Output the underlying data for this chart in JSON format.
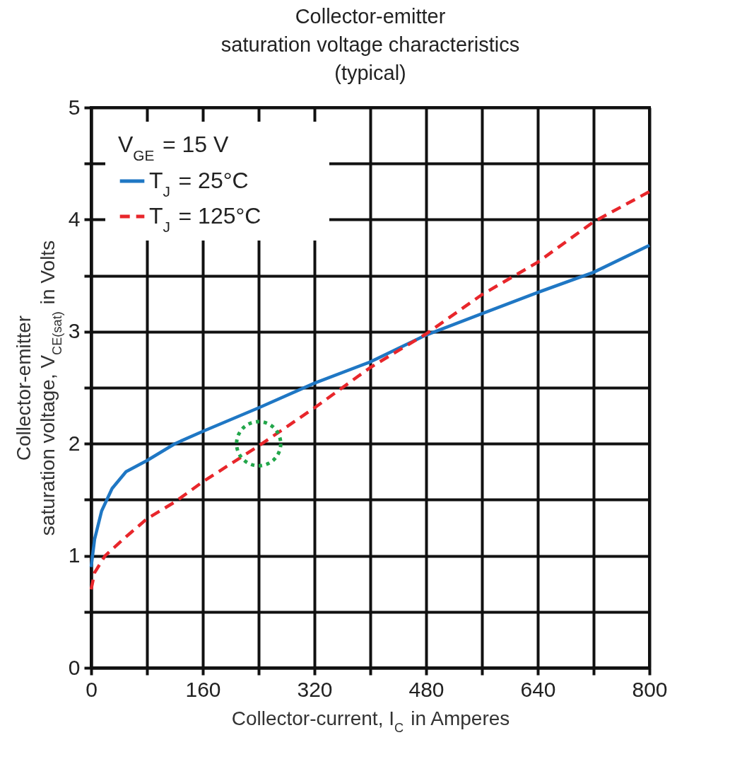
{
  "chart_data": {
    "type": "line",
    "title": "Collector-emitter\nsaturation voltage characteristics\n(typical)",
    "xlabel": "Collector-current, I$_{C}$ in Amperes",
    "ylabel": "Collector-emitter\nsaturation voltage, V$_{CE(sat)}$ in Volts",
    "legend_title": "V$_{GE}$ = 15 V",
    "legend": "top left",
    "grid": true,
    "xlim": [
      0,
      800
    ],
    "xticks": [
      0,
      {
        "value": 80,
        "label": null
      },
      160,
      {
        "value": 240,
        "label": null
      },
      320,
      {
        "value": 400,
        "label": null
      },
      480,
      {
        "value": 560,
        "label": null
      },
      640,
      {
        "value": 720,
        "label": null
      },
      800
    ],
    "ylim": [
      0,
      5
    ],
    "yticks": [
      0,
      {
        "value": 0.5,
        "label": null
      },
      1,
      {
        "value": 1.5,
        "label": null
      },
      2,
      {
        "value": 2.5,
        "label": null
      },
      3,
      {
        "value": 3.5,
        "label": null
      },
      4,
      {
        "value": 4.5,
        "label": null
      },
      5
    ],
    "series": [
      {
        "name": "T$_{J}$ = 25°C",
        "color": "#1f77c4",
        "line_style": "solid",
        "x": [
          0,
          5,
          15,
          30,
          50,
          80,
          120,
          160,
          240,
          320,
          400,
          480,
          560,
          640,
          720,
          800
        ],
        "values": [
          0.9,
          1.15,
          1.4,
          1.6,
          1.75,
          1.85,
          2.0,
          2.11,
          2.32,
          2.54,
          2.73,
          2.97,
          3.16,
          3.35,
          3.53,
          3.77
        ]
      },
      {
        "name": "T$_{J}$ = 125°C",
        "color": "#e8262b",
        "line_style": "dashed",
        "x": [
          0,
          5,
          20,
          50,
          80,
          120,
          160,
          240,
          320,
          400,
          480,
          560,
          640,
          720,
          800
        ],
        "values": [
          0.7,
          0.85,
          1.0,
          1.17,
          1.33,
          1.48,
          1.66,
          1.98,
          2.32,
          2.68,
          2.98,
          3.33,
          3.62,
          3.98,
          4.25
        ]
      },
      {
        "type": "scatter",
        "marker": "circle",
        "line_style": "dotted",
        "color": "#22a64a",
        "x": [
          240
        ],
        "values": [
          2
        ]
      }
    ]
  }
}
